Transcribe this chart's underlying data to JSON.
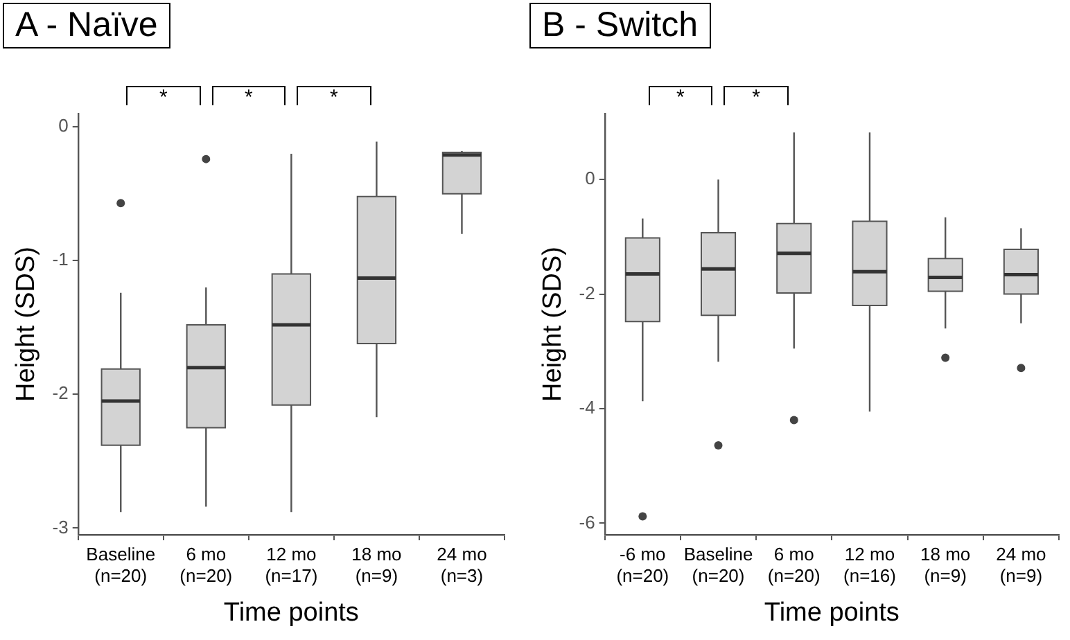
{
  "chart_data": [
    {
      "type": "box",
      "title": "A - Naïve",
      "xlabel": "Time points",
      "ylabel": "Height (SDS)",
      "color": "#d3d3d3",
      "grid": false,
      "categories": [
        "Baseline\n(n=20)",
        "6 mo\n(n=20)",
        "12 mo\n(n=17)",
        "18 mo\n(n=9)",
        "24 mo\n(n=3)"
      ],
      "boxes": [
        {
          "low": -2.88,
          "q1": -2.38,
          "median": -2.05,
          "q3": -1.81,
          "high": -1.24,
          "outliers": [
            -0.57
          ]
        },
        {
          "low": -2.84,
          "q1": -2.25,
          "median": -1.8,
          "q3": -1.48,
          "high": -1.2,
          "outliers": [
            -0.24
          ]
        },
        {
          "low": -2.88,
          "q1": -2.08,
          "median": -1.48,
          "q3": -1.1,
          "high": -0.2
        },
        {
          "low": -2.17,
          "q1": -1.62,
          "median": -1.13,
          "q3": -0.52,
          "high": -0.11
        },
        {
          "low": -0.8,
          "q1": -0.5,
          "median": -0.21,
          "q3": -0.19,
          "high": -0.18
        }
      ],
      "ylim": [
        -3.05,
        0.1
      ],
      "yticks": [
        0,
        -1,
        -2,
        -3
      ],
      "annotations": [
        "*",
        "*",
        "*"
      ]
    },
    {
      "type": "box",
      "title": "B - Switch",
      "xlabel": "Time points",
      "ylabel": "Height (SDS)",
      "color": "#d3d3d3",
      "grid": false,
      "categories": [
        "-6 mo\n(n=20)",
        "Baseline\n(n=20)",
        "6 mo\n(n=20)",
        "12 mo\n(n=16)",
        "18 mo\n(n=9)",
        "24 mo\n(n=9)"
      ],
      "boxes": [
        {
          "low": -3.87,
          "q1": -2.48,
          "median": -1.65,
          "q3": -1.02,
          "high": -0.68,
          "outliers": [
            -5.88
          ]
        },
        {
          "low": -3.18,
          "q1": -2.37,
          "median": -1.56,
          "q3": -0.93,
          "high": 0.0,
          "outliers": [
            -4.64
          ]
        },
        {
          "low": -2.95,
          "q1": -1.98,
          "median": -1.29,
          "q3": -0.77,
          "high": 0.82,
          "outliers": [
            -4.2
          ]
        },
        {
          "low": -4.05,
          "q1": -2.2,
          "median": -1.61,
          "q3": -0.73,
          "high": 0.82
        },
        {
          "low": -2.6,
          "q1": -1.95,
          "median": -1.71,
          "q3": -1.38,
          "high": -0.66,
          "outliers": [
            -3.11
          ]
        },
        {
          "low": -2.51,
          "q1": -2.0,
          "median": -1.66,
          "q3": -1.22,
          "high": -0.85,
          "outliers": [
            -3.29
          ]
        }
      ],
      "ylim": [
        -6.2,
        1.15
      ],
      "yticks": [
        0,
        -2,
        -4,
        -6
      ],
      "annotations": [
        "*",
        "*"
      ]
    }
  ]
}
